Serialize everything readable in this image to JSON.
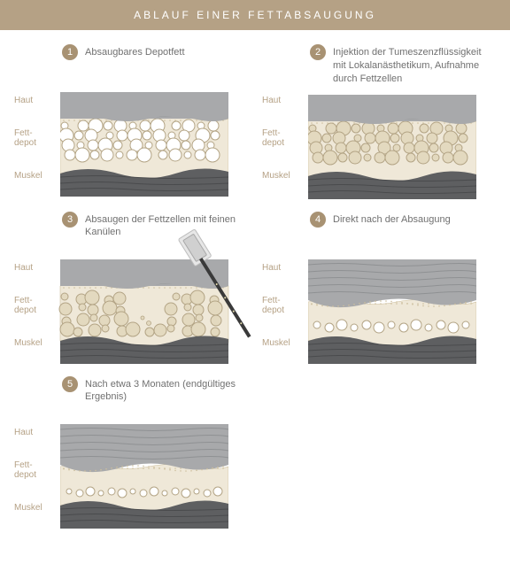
{
  "header": {
    "title": "ABLAUF EINER FETTABSAUGUNG"
  },
  "colors": {
    "header_bg": "#b5a185",
    "header_text": "#ffffff",
    "badge_bg": "#a89273",
    "label_text": "#b5a185",
    "title_text": "#707070",
    "skin_gray": "#a8a9ab",
    "skin_gray_dark": "#8f9193",
    "fat_bg": "#efe8d8",
    "fat_border": "#cdbf9e",
    "muscle_gray": "#5e5f61",
    "muscle_gray_dark": "#4a4b4d",
    "cell_outline": "#b3a485",
    "cell_fill_empty": "#ffffff",
    "cell_fill_swollen": "#e3d9bf",
    "cannula_gray": "#9d9d9d",
    "cannula_dark": "#3a3a3a"
  },
  "layer_labels": {
    "skin": "Haut",
    "fat": "Fett-\ndepot",
    "muscle": "Muskel"
  },
  "steps": [
    {
      "num": "1",
      "title": "Absaugbares Depotfett",
      "variant": "full_empty"
    },
    {
      "num": "2",
      "title": "Injektion der Tumeszenzflüssigkeit mit Lokalanästhetikum, Aufnahme durch Fettzellen",
      "variant": "full_swollen"
    },
    {
      "num": "3",
      "title": "Absaugen der Fettzellen mit feinen Kanülen",
      "variant": "cannula"
    },
    {
      "num": "4",
      "title": "Direkt nach der Absaugung",
      "variant": "reduced"
    },
    {
      "num": "5",
      "title": "Nach etwa 3 Monaten (endgültiges Ergebnis)",
      "variant": "final"
    }
  ]
}
